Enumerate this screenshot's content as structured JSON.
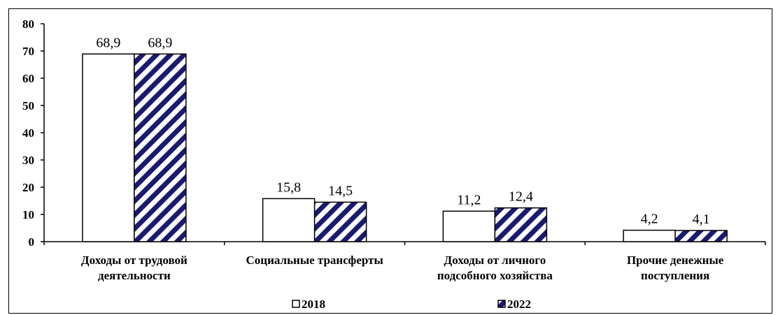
{
  "chart_data": {
    "type": "bar",
    "categories": [
      [
        "Доходы от трудовой",
        "деятельности"
      ],
      [
        "Социальные трансферты"
      ],
      [
        "Доходы от личного",
        "подсобного хозяйства"
      ],
      [
        "Прочие денежные",
        "поступления"
      ]
    ],
    "series": [
      {
        "name": "2018",
        "values": [
          68.9,
          15.8,
          11.2,
          4.2
        ],
        "value_labels": [
          "68,9",
          "15,8",
          "11,2",
          "4,2"
        ],
        "fill": "white"
      },
      {
        "name": "2022",
        "values": [
          68.9,
          14.5,
          12.4,
          4.1
        ],
        "value_labels": [
          "68,9",
          "14,5",
          "12,4",
          "4,1"
        ],
        "fill": "diagonal-hatch"
      }
    ],
    "ylim": [
      0,
      80
    ],
    "yticks": [
      "0",
      "10",
      "20",
      "30",
      "40",
      "50",
      "60",
      "70",
      "80"
    ],
    "grid": false,
    "legend_position": "bottom",
    "colors": {
      "hatch": "#1a1a6e",
      "outline": "#000000",
      "background": "#ffffff"
    }
  }
}
